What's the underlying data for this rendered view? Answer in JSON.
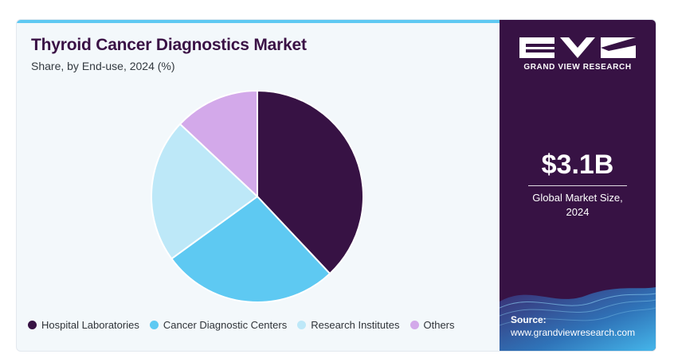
{
  "chart_data": {
    "type": "pie",
    "title": "Thyroid Cancer Diagnostics Market",
    "subtitle": "Share, by End-use, 2024 (%)",
    "categories": [
      "Hospital Laboratories",
      "Cancer Diagnostic Centers",
      "Research Institutes",
      "Others"
    ],
    "values": [
      38,
      27,
      22,
      13
    ],
    "colors": [
      "#371244",
      "#5ec9f2",
      "#bde8f8",
      "#d3a9ea"
    ],
    "legend_position": "bottom"
  },
  "sidebar": {
    "brand_text": "GRAND VIEW RESEARCH",
    "market_value": "$3.1B",
    "market_label_line1": "Global Market Size,",
    "market_label_line2": "2024",
    "source_label": "Source:",
    "source_url": "www.grandviewresearch.com"
  }
}
